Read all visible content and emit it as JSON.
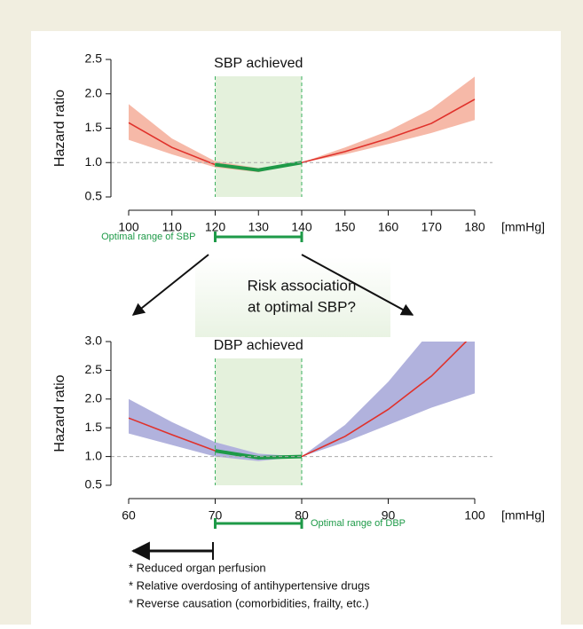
{
  "chart_data": [
    {
      "type": "line",
      "title": "SBP achieved",
      "y_label": "Hazard ratio",
      "x_unit": "[mmHg]",
      "x": [
        100,
        110,
        120,
        130,
        140,
        150,
        160,
        170,
        180
      ],
      "series": [
        {
          "color": "#e0312b",
          "values": [
            1.58,
            1.22,
            0.97,
            0.89,
            1.0,
            1.16,
            1.35,
            1.57,
            1.92
          ]
        },
        {
          "color": "#1e9a48",
          "values": [
            null,
            null,
            0.97,
            0.89,
            1.0,
            null,
            null,
            null,
            null
          ]
        }
      ],
      "band": {
        "color": "#f6b9a8",
        "lower": [
          1.33,
          1.12,
          0.93,
          0.86,
          1.0,
          1.12,
          1.27,
          1.43,
          1.62
        ],
        "upper": [
          1.85,
          1.35,
          1.02,
          0.92,
          1.0,
          1.22,
          1.46,
          1.78,
          2.25
        ]
      },
      "xlim": [
        100,
        180
      ],
      "xticks": [
        100,
        110,
        120,
        130,
        140,
        150,
        160,
        170,
        180
      ],
      "ylim": [
        0.5,
        2.5
      ],
      "yticks": [
        0.5,
        {
          "value": 1,
          "label": "1.0"
        },
        1.5,
        {
          "value": 2,
          "label": "2.0"
        },
        2.5
      ],
      "ref_line": 1,
      "highlight": [
        120,
        140
      ],
      "highlight_color": "#e4f1dc",
      "range_label": "Optimal range of SBP",
      "range_label_side": "left"
    },
    {
      "type": "line",
      "title": "DBP achieved",
      "y_label": "Hazard ratio",
      "x_unit": "[mmHg]",
      "x": [
        60,
        65,
        70,
        75,
        80,
        85,
        90,
        95,
        100
      ],
      "series": [
        {
          "color": "#e0312b",
          "values": [
            1.67,
            1.38,
            1.1,
            0.98,
            1.0,
            1.35,
            1.82,
            2.4,
            3.15
          ]
        },
        {
          "color": "#1e9a48",
          "values": [
            null,
            null,
            1.1,
            0.98,
            1.0,
            null,
            null,
            null,
            null
          ]
        }
      ],
      "band": {
        "color": "#b1b2dd",
        "lower": [
          1.4,
          1.2,
          1.0,
          0.92,
          1.0,
          1.25,
          1.55,
          1.85,
          2.1
        ],
        "upper": [
          2.0,
          1.6,
          1.25,
          1.05,
          1.0,
          1.55,
          2.3,
          3.2,
          4.0
        ]
      },
      "xlim": [
        60,
        100
      ],
      "xticks": [
        60,
        70,
        80,
        90,
        100
      ],
      "ylim": [
        0.5,
        3
      ],
      "yticks": [
        0.5,
        {
          "value": 1,
          "label": "1.0"
        },
        1.5,
        {
          "value": 2,
          "label": "2.0"
        },
        2.5,
        {
          "value": 3,
          "label": "3.0"
        }
      ],
      "ref_line": 1,
      "highlight": [
        70,
        80
      ],
      "highlight_color": "#e4f1dc",
      "range_label": "Optimal range of DBP",
      "range_label_side": "right"
    }
  ],
  "question": [
    "Risk association",
    "at optimal SBP?"
  ],
  "notes": [
    "* Reduced organ perfusion",
    "* Relative overdosing of antihypertensive drugs",
    "* Reverse causation (comorbidities, frailty, etc.)"
  ]
}
